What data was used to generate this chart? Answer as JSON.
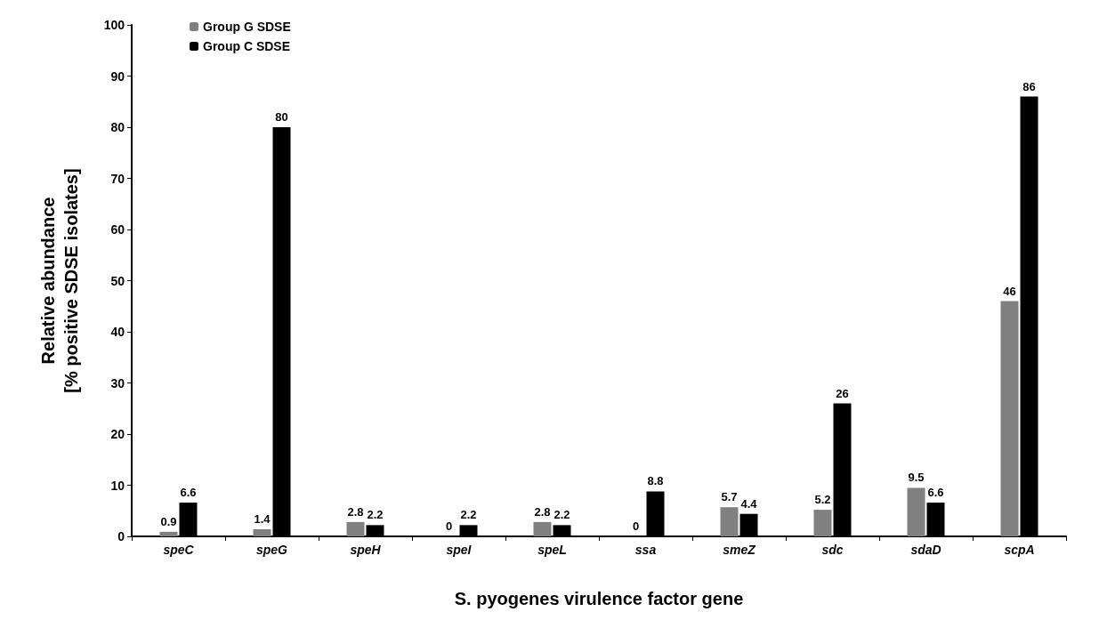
{
  "chart_data": {
    "type": "bar",
    "xlabel": "S. pyogenes virulence factor gene",
    "ylabel": "Relative abundance\n[% positive SDSE isolates]",
    "categories": [
      "speC",
      "speG",
      "speH",
      "speI",
      "speL",
      "ssa",
      "smeZ",
      "sdc",
      "sdaD",
      "scpA"
    ],
    "series": [
      {
        "name": "Group G SDSE",
        "color": "#808080",
        "values": [
          0.9,
          1.4,
          2.8,
          0,
          2.8,
          0,
          5.7,
          5.2,
          9.5,
          46
        ]
      },
      {
        "name": "Group C SDSE",
        "color": "#000000",
        "values": [
          6.6,
          80,
          2.2,
          2.2,
          2.2,
          8.8,
          4.4,
          26,
          6.6,
          86
        ]
      }
    ],
    "ylim": [
      0,
      100
    ],
    "yticks": [
      0,
      10,
      20,
      30,
      40,
      50,
      60,
      70,
      80,
      90,
      100
    ],
    "grid": false,
    "legend": "top left",
    "data_labels": true
  }
}
